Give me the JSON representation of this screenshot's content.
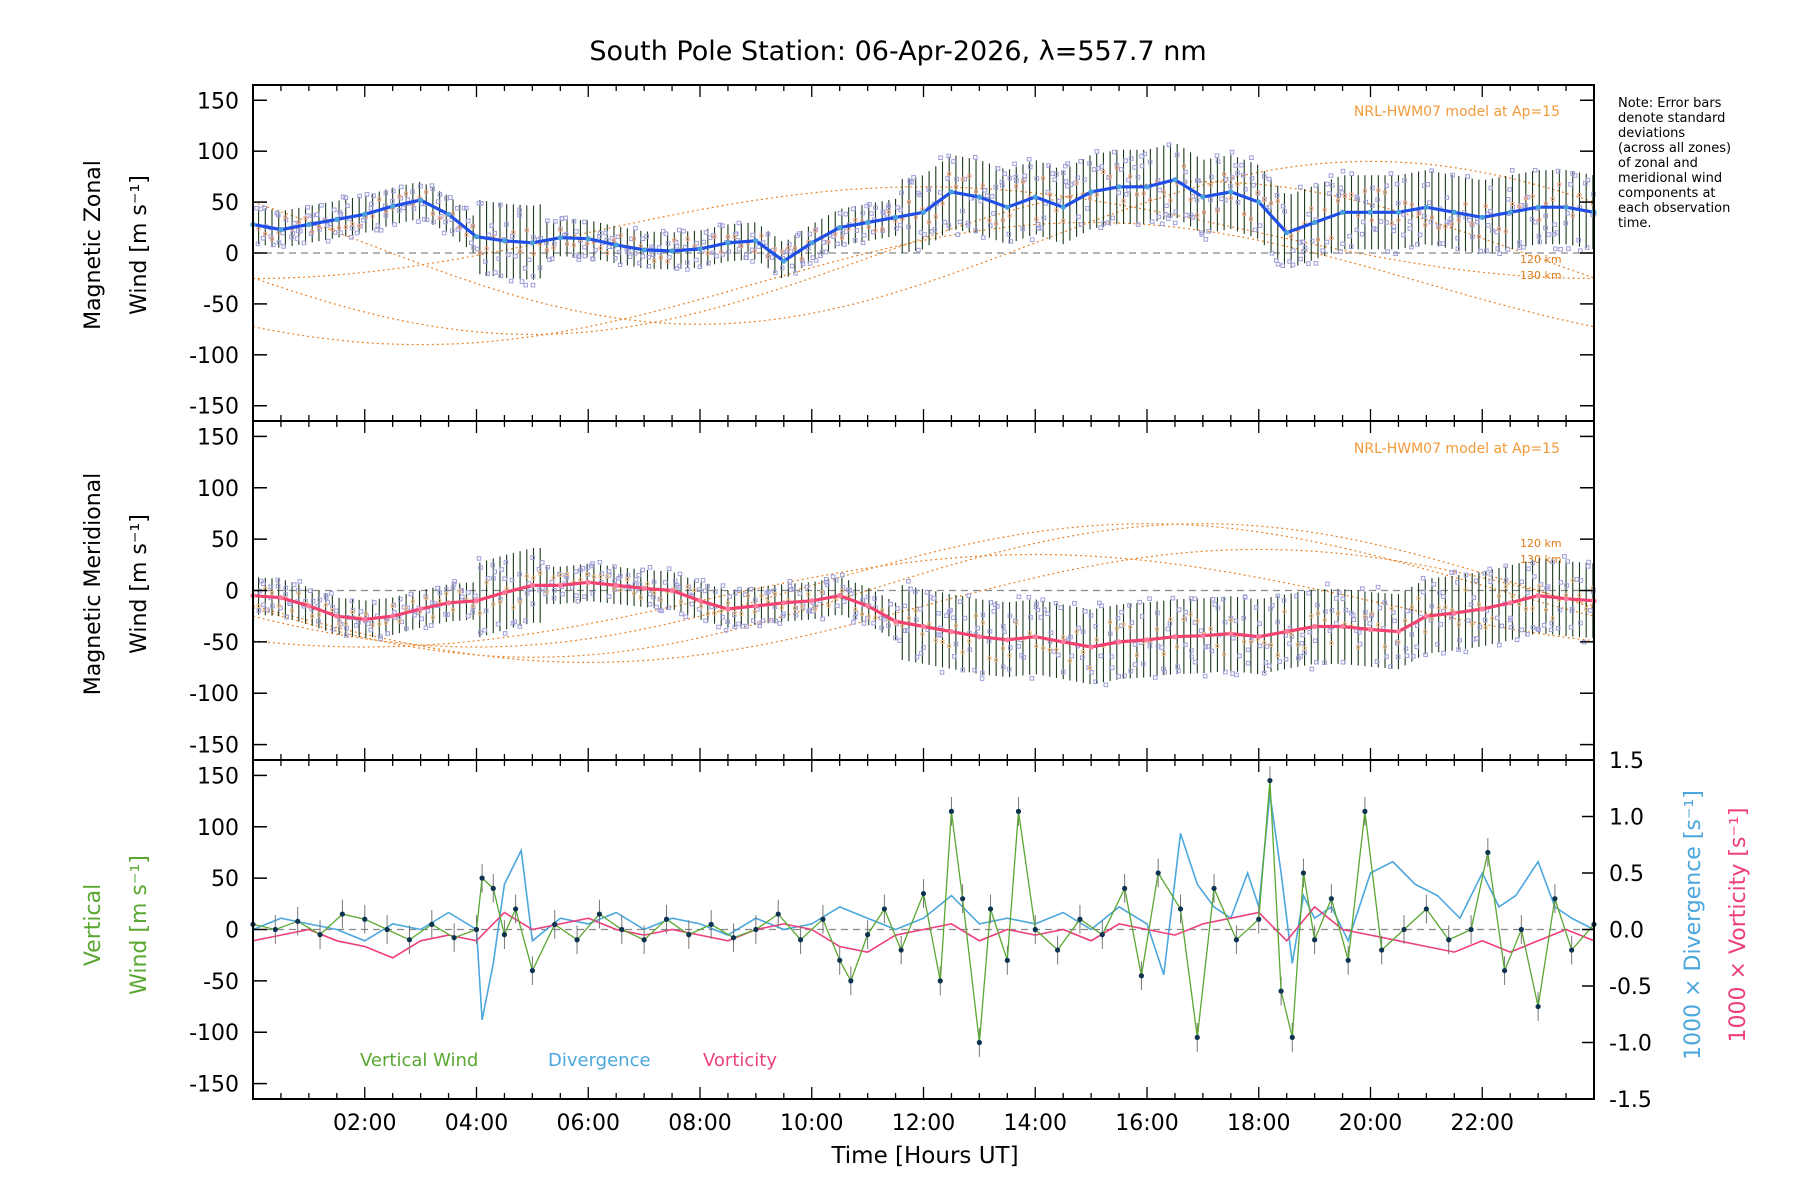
{
  "chart_data": [
    {
      "type": "line",
      "title": "South Pole Station: 06-Apr-2026, λ=557.7 nm",
      "xlabel": "",
      "ylabel": "Magnetic Zonal Wind [m s⁻¹]",
      "ylabel_lines": [
        "Magnetic Zonal",
        "Wind [m s⁻¹]"
      ],
      "xlim": [
        0,
        24
      ],
      "ylim": [
        -165,
        165
      ],
      "yticks": [
        150,
        100,
        50,
        0,
        -50,
        -100,
        -150
      ],
      "model_label": "NRL-HWM07 model at Ap=15",
      "altitude_labels": [
        "120 km",
        "130 km"
      ],
      "note": [
        "Note: Error bars",
        "denote standard",
        "deviations",
        "(across all zones)",
        "of zonal and",
        "meridional wind",
        "components at",
        "each observation",
        "time."
      ],
      "series": [
        {
          "name": "Zonal wind (mean)",
          "color": "#1f4fe6",
          "x": [
            0.0,
            0.5,
            1.0,
            1.5,
            2.0,
            2.5,
            3.0,
            3.5,
            4.0,
            4.5,
            5.0,
            5.5,
            6.0,
            6.5,
            7.0,
            7.5,
            8.0,
            8.5,
            9.0,
            9.5,
            10.0,
            10.5,
            11.0,
            11.5,
            12.0,
            12.5,
            13.0,
            13.5,
            14.0,
            14.5,
            15.0,
            15.5,
            16.0,
            16.5,
            17.0,
            17.5,
            18.0,
            18.5,
            19.0,
            19.5,
            20.0,
            20.5,
            21.0,
            21.5,
            22.0,
            22.5,
            23.0,
            23.5,
            24.0
          ],
          "values": [
            28,
            23,
            28,
            33,
            38,
            46,
            52,
            38,
            16,
            12,
            10,
            15,
            14,
            8,
            3,
            2,
            4,
            10,
            12,
            -8,
            10,
            25,
            30,
            35,
            40,
            60,
            55,
            45,
            55,
            45,
            60,
            65,
            65,
            72,
            55,
            60,
            50,
            20,
            30,
            40,
            40,
            40,
            45,
            40,
            35,
            40,
            45,
            45,
            40
          ]
        }
      ]
    },
    {
      "type": "line",
      "ylabel": "Magnetic Meridional Wind [m s⁻¹]",
      "ylabel_lines": [
        "Magnetic Meridional",
        "Wind [m s⁻¹]"
      ],
      "xlim": [
        0,
        24
      ],
      "ylim": [
        -165,
        165
      ],
      "yticks": [
        150,
        100,
        50,
        0,
        -50,
        -100,
        -150
      ],
      "model_label": "NRL-HWM07 model at Ap=15",
      "altitude_labels": [
        "120 km",
        "130 km"
      ],
      "series": [
        {
          "name": "Meridional wind (mean)",
          "color": "#f2426f",
          "x": [
            0.0,
            0.5,
            1.0,
            1.5,
            2.0,
            2.5,
            3.0,
            3.5,
            4.0,
            4.5,
            5.0,
            5.5,
            6.0,
            6.5,
            7.0,
            7.5,
            8.0,
            8.5,
            9.0,
            9.5,
            10.0,
            10.5,
            11.0,
            11.5,
            12.0,
            12.5,
            13.0,
            13.5,
            14.0,
            14.5,
            15.0,
            15.5,
            16.0,
            16.5,
            17.0,
            17.5,
            18.0,
            18.5,
            19.0,
            19.5,
            20.0,
            20.5,
            21.0,
            21.5,
            22.0,
            22.5,
            23.0,
            23.5,
            24.0
          ],
          "values": [
            -5,
            -7,
            -15,
            -25,
            -28,
            -25,
            -18,
            -12,
            -10,
            -2,
            5,
            5,
            8,
            5,
            2,
            0,
            -10,
            -18,
            -15,
            -12,
            -10,
            -5,
            -15,
            -30,
            -35,
            -40,
            -45,
            -48,
            -45,
            -50,
            -55,
            -50,
            -48,
            -45,
            -44,
            -42,
            -45,
            -40,
            -35,
            -35,
            -38,
            -40,
            -25,
            -22,
            -18,
            -12,
            -5,
            -8,
            -10
          ]
        }
      ]
    },
    {
      "type": "line",
      "xlabel": "Time [Hours UT]",
      "ylabel": "Vertical Wind [m s⁻¹]",
      "ylabel_lines": [
        "Vertical",
        "Wind [m s⁻¹]"
      ],
      "y2label_divergence": "1000 × Divergence [s⁻¹]",
      "y2label_vorticity": "1000 × Vorticity [s⁻¹]",
      "xlim": [
        0,
        24
      ],
      "ylim": [
        -165,
        165
      ],
      "y2lim": [
        -1.5,
        1.5
      ],
      "yticks": [
        150,
        100,
        50,
        0,
        -50,
        -100,
        -150
      ],
      "y2ticks": [
        "1.5",
        "1.0",
        "0.5",
        "0.0",
        "-0.5",
        "-1.0",
        "-1.5"
      ],
      "xticks": [
        "02:00",
        "04:00",
        "06:00",
        "08:00",
        "10:00",
        "12:00",
        "14:00",
        "16:00",
        "18:00",
        "20:00",
        "22:00"
      ],
      "legend": [
        "Vertical Wind",
        "Divergence",
        "Vorticity"
      ],
      "series": [
        {
          "name": "Vertical Wind",
          "color": "#5aa832",
          "x": [
            0.0,
            0.4,
            0.8,
            1.2,
            1.6,
            2.0,
            2.4,
            2.8,
            3.2,
            3.6,
            4.0,
            4.1,
            4.3,
            4.5,
            4.7,
            5.0,
            5.4,
            5.8,
            6.2,
            6.6,
            7.0,
            7.4,
            7.8,
            8.2,
            8.6,
            9.0,
            9.4,
            9.8,
            10.2,
            10.5,
            10.7,
            11.0,
            11.3,
            11.6,
            12.0,
            12.3,
            12.5,
            12.7,
            13.0,
            13.2,
            13.5,
            13.7,
            14.0,
            14.4,
            14.8,
            15.2,
            15.6,
            15.9,
            16.2,
            16.6,
            16.9,
            17.2,
            17.6,
            18.0,
            18.2,
            18.4,
            18.6,
            18.8,
            19.0,
            19.3,
            19.6,
            19.9,
            20.2,
            20.6,
            21.0,
            21.4,
            21.8,
            22.1,
            22.4,
            22.7,
            23.0,
            23.3,
            23.6,
            24.0
          ],
          "values": [
            5,
            0,
            8,
            -5,
            15,
            10,
            0,
            -10,
            5,
            -8,
            0,
            50,
            40,
            -5,
            20,
            -40,
            5,
            -10,
            15,
            0,
            -10,
            10,
            -5,
            5,
            -8,
            0,
            15,
            -10,
            10,
            -30,
            -50,
            -5,
            20,
            -20,
            35,
            -50,
            115,
            30,
            -110,
            20,
            -30,
            115,
            0,
            -20,
            10,
            -5,
            40,
            -45,
            55,
            20,
            -105,
            40,
            -10,
            10,
            145,
            -60,
            -105,
            55,
            -10,
            30,
            -30,
            115,
            -20,
            0,
            20,
            -10,
            0,
            75,
            -40,
            0,
            -75,
            30,
            -20,
            5
          ]
        },
        {
          "name": "Divergence",
          "color": "#4ca7dd",
          "x": [
            0.0,
            0.5,
            1.0,
            1.5,
            2.0,
            2.5,
            3.0,
            3.5,
            4.0,
            4.1,
            4.3,
            4.5,
            4.8,
            5.0,
            5.5,
            6.0,
            6.5,
            7.0,
            7.5,
            8.0,
            8.5,
            9.0,
            9.5,
            10.0,
            10.5,
            11.0,
            11.5,
            12.0,
            12.5,
            13.0,
            13.5,
            14.0,
            14.5,
            15.0,
            15.5,
            16.0,
            16.3,
            16.6,
            16.9,
            17.2,
            17.5,
            17.8,
            18.0,
            18.2,
            18.4,
            18.6,
            18.8,
            19.0,
            19.3,
            19.6,
            20.0,
            20.4,
            20.8,
            21.2,
            21.6,
            22.0,
            22.3,
            22.6,
            23.0,
            23.3,
            23.6,
            24.0
          ],
          "values": [
            0.0,
            0.1,
            0.05,
            0.0,
            -0.1,
            0.05,
            0.0,
            0.15,
            0.0,
            -0.8,
            -0.3,
            0.4,
            0.7,
            -0.1,
            0.1,
            0.05,
            0.15,
            0.0,
            0.1,
            0.05,
            -0.05,
            0.1,
            0.0,
            0.05,
            0.2,
            0.1,
            0.0,
            0.1,
            0.3,
            0.05,
            0.1,
            0.05,
            0.15,
            0.0,
            0.2,
            0.05,
            -0.4,
            0.85,
            0.4,
            0.2,
            0.1,
            0.5,
            0.2,
            1.2,
            0.5,
            -0.3,
            0.3,
            0.1,
            0.2,
            -0.1,
            0.5,
            0.6,
            0.4,
            0.3,
            0.1,
            0.5,
            0.2,
            0.3,
            0.6,
            0.2,
            0.1,
            0.0
          ]
        },
        {
          "name": "Vorticity",
          "color": "#ee3f7d",
          "x": [
            0.0,
            0.5,
            1.0,
            1.5,
            2.0,
            2.5,
            3.0,
            3.5,
            4.0,
            4.5,
            5.0,
            5.5,
            6.0,
            6.5,
            7.0,
            7.5,
            8.0,
            8.5,
            9.0,
            9.5,
            10.0,
            10.5,
            11.0,
            11.5,
            12.0,
            12.5,
            13.0,
            13.5,
            14.0,
            14.5,
            15.0,
            15.5,
            16.0,
            16.5,
            17.0,
            17.5,
            18.0,
            18.5,
            19.0,
            19.5,
            20.0,
            20.5,
            21.0,
            21.5,
            22.0,
            22.5,
            23.0,
            23.5,
            24.0
          ],
          "values": [
            -0.1,
            -0.05,
            0.0,
            -0.1,
            -0.15,
            -0.25,
            -0.1,
            -0.05,
            -0.1,
            0.15,
            0.0,
            0.05,
            0.1,
            0.0,
            -0.05,
            0.0,
            -0.05,
            -0.1,
            0.0,
            0.05,
            0.0,
            -0.15,
            -0.2,
            -0.05,
            0.0,
            0.05,
            -0.1,
            0.0,
            -0.05,
            0.0,
            -0.1,
            0.05,
            0.0,
            -0.05,
            0.05,
            0.1,
            0.15,
            -0.1,
            0.2,
            0.0,
            -0.05,
            -0.1,
            -0.15,
            -0.2,
            -0.1,
            -0.2,
            -0.1,
            0.0,
            -0.1
          ]
        }
      ]
    }
  ]
}
